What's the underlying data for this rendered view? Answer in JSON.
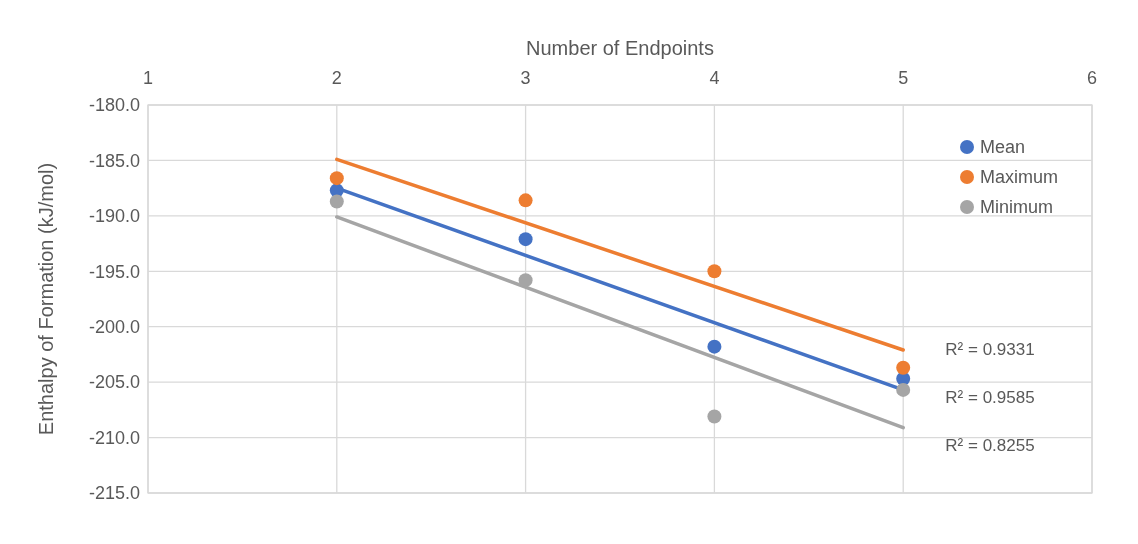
{
  "chart_data": {
    "type": "scatter",
    "xlabel": "Number of Endpoints",
    "ylabel": "Enthalpy of Formation (kJ/mol)",
    "xlim": [
      1,
      6
    ],
    "xticks": [
      1,
      2,
      3,
      4,
      5,
      6
    ],
    "ylim": [
      -215,
      -180
    ],
    "yticks": [
      {
        "value": -215,
        "label": "-215.0"
      },
      {
        "value": -210,
        "label": "-210.0"
      },
      {
        "value": -205,
        "label": "-205.0"
      },
      {
        "value": -200,
        "label": "-200.0"
      },
      {
        "value": -195,
        "label": "-195.0"
      },
      {
        "value": -190,
        "label": "-190.0"
      },
      {
        "value": -185,
        "label": "-185.0"
      },
      {
        "value": -180,
        "label": "-180.0"
      }
    ],
    "grid": true,
    "legend": "top right",
    "marker": "circle",
    "series": [
      {
        "type": "line",
        "marker": "none",
        "color": "#ed7d31",
        "x": [
          2,
          5
        ],
        "values": [
          -184.9,
          -202.1
        ]
      },
      {
        "type": "line",
        "marker": "none",
        "color": "#4472c4",
        "x": [
          2,
          5
        ],
        "values": [
          -187.5,
          -205.7
        ]
      },
      {
        "type": "line",
        "marker": "none",
        "color": "#a5a5a5",
        "x": [
          2,
          5
        ],
        "values": [
          -190.1,
          -209.1
        ]
      },
      {
        "name": "Mean",
        "color": "#4472c4",
        "x": [
          2,
          3,
          4,
          5
        ],
        "values": [
          -187.7,
          -192.1,
          -201.8,
          -204.7
        ]
      },
      {
        "name": "Maximum",
        "color": "#ed7d31",
        "x": [
          2,
          3,
          4,
          5
        ],
        "values": [
          -186.6,
          -188.6,
          -195.0,
          -203.7
        ]
      },
      {
        "name": "Minimum",
        "color": "#a5a5a5",
        "x": [
          2,
          3,
          4,
          5
        ],
        "values": [
          -188.7,
          -195.8,
          -208.1,
          -205.7
        ]
      }
    ],
    "annotations": [
      "R² = 0.9331",
      "R² = 0.9585",
      "R² = 0.8255"
    ]
  }
}
